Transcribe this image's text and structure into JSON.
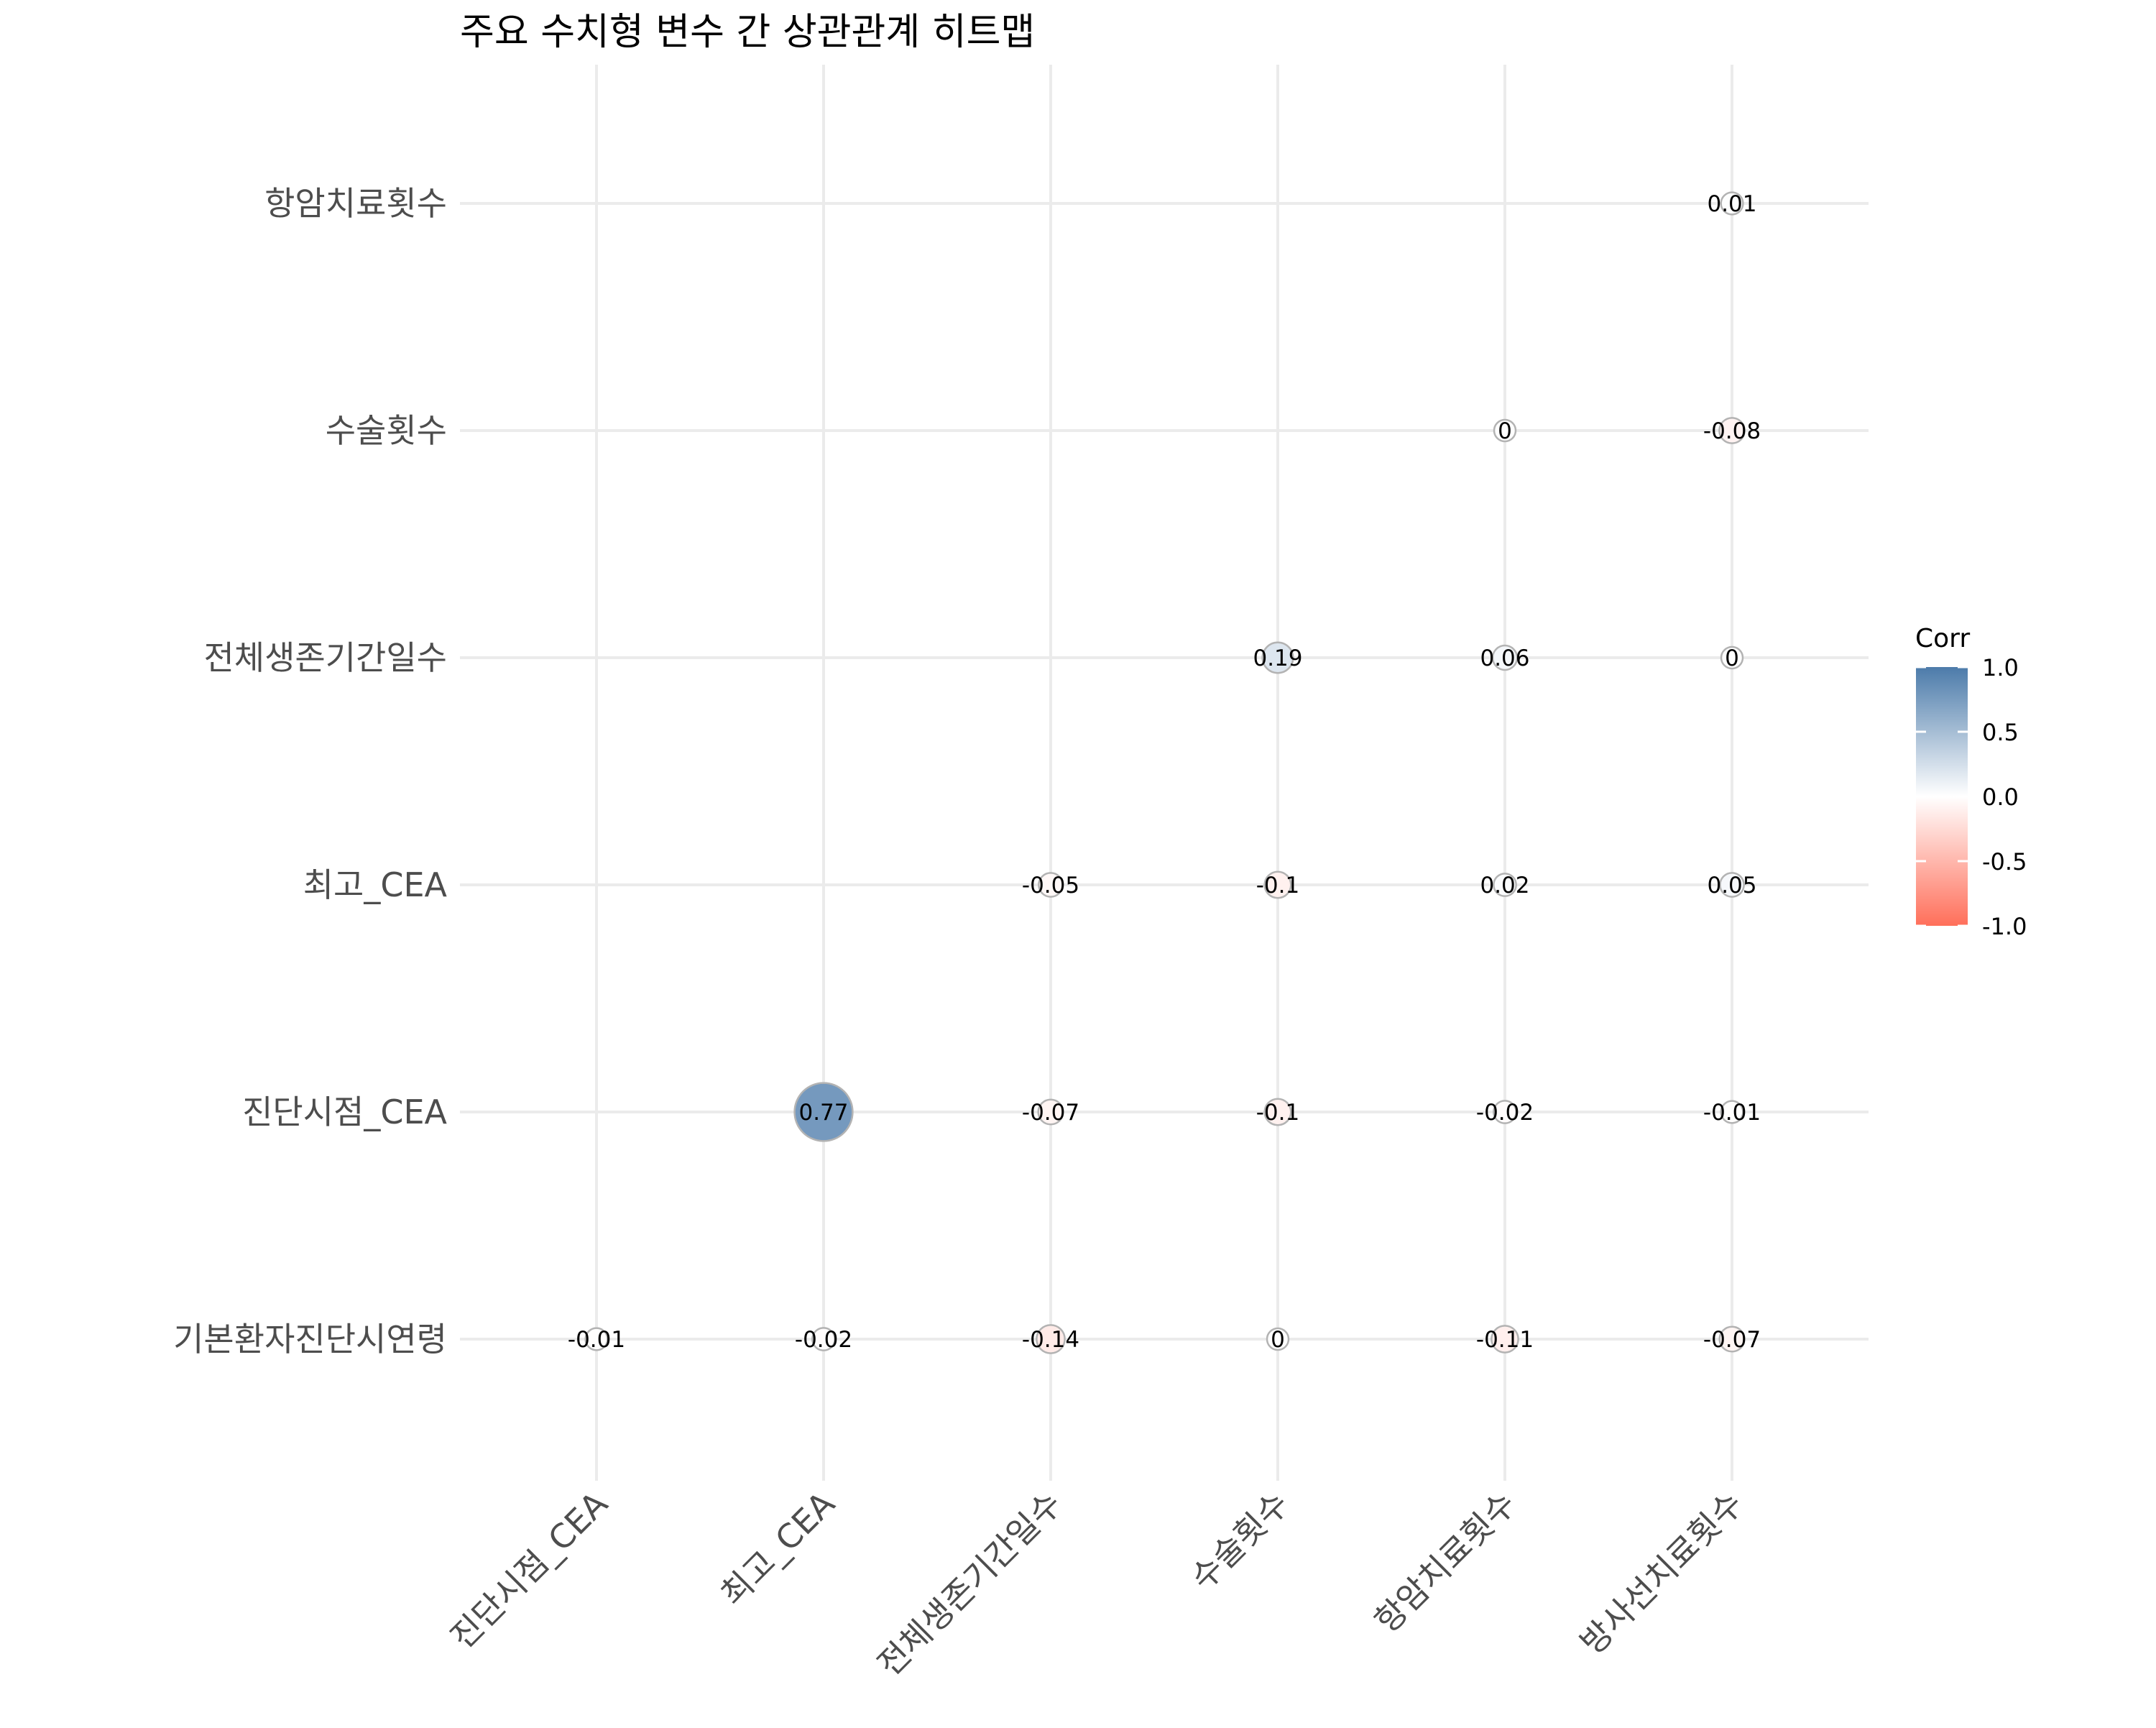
{
  "chart_data": {
    "type": "heatmap",
    "title": "주요 수치형 변수 간 상관관계 히트맵",
    "x_categories": [
      "진단시점_CEA",
      "최고_CEA",
      "전체생존기간일수",
      "수술횟수",
      "항암치료횟수",
      "방사선치료횟수"
    ],
    "y_categories": [
      "기본환자진단시연령",
      "진단시점_CEA",
      "최고_CEA",
      "전체생존기간일수",
      "수술횟수",
      "항암치료횟수"
    ],
    "cells": [
      {
        "x": "진단시점_CEA",
        "y": "기본환자진단시연령",
        "value": -0.01,
        "label": "-0.01"
      },
      {
        "x": "최고_CEA",
        "y": "기본환자진단시연령",
        "value": -0.02,
        "label": "-0.02"
      },
      {
        "x": "전체생존기간일수",
        "y": "기본환자진단시연령",
        "value": -0.14,
        "label": "-0.14"
      },
      {
        "x": "수술횟수",
        "y": "기본환자진단시연령",
        "value": 0,
        "label": "0"
      },
      {
        "x": "항암치료횟수",
        "y": "기본환자진단시연령",
        "value": -0.11,
        "label": "-0.11"
      },
      {
        "x": "방사선치료횟수",
        "y": "기본환자진단시연령",
        "value": -0.07,
        "label": "-0.07"
      },
      {
        "x": "최고_CEA",
        "y": "진단시점_CEA",
        "value": 0.77,
        "label": "0.77"
      },
      {
        "x": "전체생존기간일수",
        "y": "진단시점_CEA",
        "value": -0.07,
        "label": "-0.07"
      },
      {
        "x": "수술횟수",
        "y": "진단시점_CEA",
        "value": -0.1,
        "label": "-0.1"
      },
      {
        "x": "항암치료횟수",
        "y": "진단시점_CEA",
        "value": -0.02,
        "label": "-0.02"
      },
      {
        "x": "방사선치료횟수",
        "y": "진단시점_CEA",
        "value": -0.01,
        "label": "-0.01"
      },
      {
        "x": "전체생존기간일수",
        "y": "최고_CEA",
        "value": -0.05,
        "label": "-0.05"
      },
      {
        "x": "수술횟수",
        "y": "최고_CEA",
        "value": -0.1,
        "label": "-0.1"
      },
      {
        "x": "항암치료횟수",
        "y": "최고_CEA",
        "value": 0.02,
        "label": "0.02"
      },
      {
        "x": "방사선치료횟수",
        "y": "최고_CEA",
        "value": 0.05,
        "label": "0.05"
      },
      {
        "x": "수술횟수",
        "y": "전체생존기간일수",
        "value": 0.19,
        "label": "0.19"
      },
      {
        "x": "항암치료횟수",
        "y": "전체생존기간일수",
        "value": 0.06,
        "label": "0.06"
      },
      {
        "x": "방사선치료횟수",
        "y": "전체생존기간일수",
        "value": 0,
        "label": "0"
      },
      {
        "x": "항암치료횟수",
        "y": "수술횟수",
        "value": 0,
        "label": "0"
      },
      {
        "x": "방사선치료횟수",
        "y": "수술횟수",
        "value": -0.08,
        "label": "-0.08"
      },
      {
        "x": "방사선치료횟수",
        "y": "항암치료횟수",
        "value": 0.01,
        "label": "0.01"
      }
    ],
    "legend": {
      "title": "Corr",
      "ticks": [
        "1.0",
        "0.5",
        "0.0",
        "-0.5",
        "-1.0"
      ],
      "range": [
        -1,
        1
      ],
      "position": "right"
    },
    "colors": {
      "high": "#4C7BAA",
      "mid": "#FFFFFF",
      "low": "#FF6F5A",
      "grid": "#EBEBEB",
      "circle_border": "#B3B3B3"
    },
    "grid": true,
    "marker": "circle sized by |corr|"
  }
}
